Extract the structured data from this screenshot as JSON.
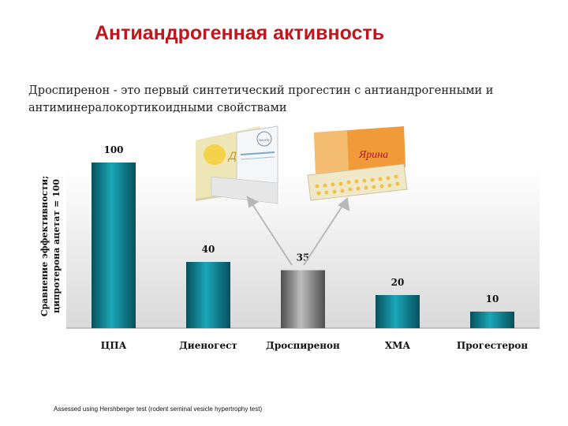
{
  "header": {
    "title": "Антиандрогенная активность",
    "subtitle": "Дроспиренон - это первый синтетический прогестин с антиандрогенными и антиминералокортикоидными свойствами"
  },
  "chart_data": {
    "type": "bar",
    "categories": [
      "ЦПА",
      "Диеногест",
      "Дроспиренон",
      "ХМА",
      "Прогестерон"
    ],
    "values": [
      100,
      40,
      35,
      20,
      10
    ],
    "value_labels": [
      "100",
      "40",
      "35",
      "20",
      "10"
    ],
    "ylabel": "Сравнение эффективности; ципротерона ацетат = 100",
    "ylabel_lines": [
      "Сравнение эффективности;",
      "ципротерона ацетат = 100"
    ],
    "ylim": [
      0,
      100
    ],
    "highlight_index": 2,
    "colors": {
      "bar": "#0f8fa0",
      "bar_dark": "#07505c",
      "highlight": "#9a9a9a",
      "highlight_dark": "#4e4e4e"
    }
  },
  "products": {
    "left_brand": "Джес",
    "left_maker": "BAYER",
    "right_brand": "Ярина"
  },
  "footnote": "Assessed using Hershberger test (rodent seminal vesicle hypertrophy test)"
}
